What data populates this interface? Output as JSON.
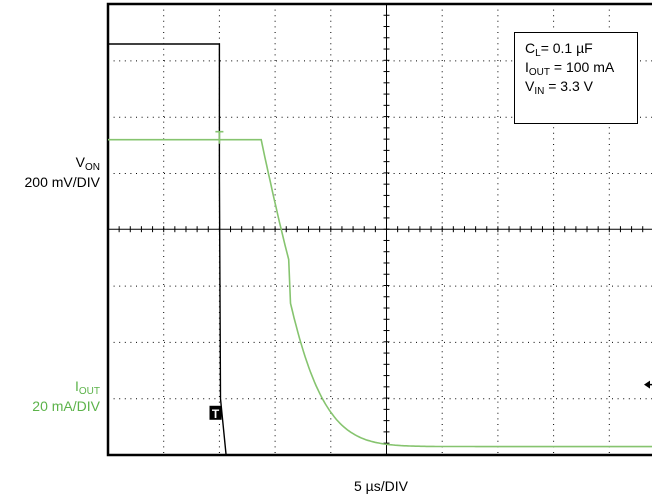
{
  "chart_data": {
    "type": "line",
    "title": "",
    "x_axis": {
      "label": "5 µs/DIV",
      "units_per_div": 5,
      "unit": "µs",
      "divisions": 10,
      "range": [
        0,
        50
      ]
    },
    "y_axis": {
      "divisions": 8,
      "grid": true
    },
    "annotation": {
      "lines": [
        {
          "main": "C",
          "sub": "L",
          "rest": "= 0.1 µF"
        },
        {
          "main": "I",
          "sub": "OUT",
          "rest": " = 100 mA"
        },
        {
          "main": "V",
          "sub": "IN",
          "rest": " = 3.3 V"
        }
      ],
      "position": "top-right"
    },
    "series": [
      {
        "name": "VON",
        "label_main": "V",
        "label_sub": "ON",
        "scale": "200 mV/DIV",
        "color": "#000000",
        "x_div": [
          0,
          2.0,
          2.0,
          2.02,
          2.12,
          10
        ],
        "y_div": [
          7.3,
          7.3,
          5.0,
          1.0,
          0.0,
          0.0
        ],
        "ground_marker": "T",
        "ground_div": 0.75
      },
      {
        "name": "IOUT",
        "label_main": "I",
        "label_sub": "OUT",
        "scale": "20 mA/DIV",
        "color": "#86c46f",
        "pre_level_div": 5.6,
        "drop_start_div": 2.75,
        "tau_div": 0.82,
        "final_div": 0.15,
        "trigger_marker": "T"
      }
    ],
    "trigger_arrow_div": 1.25
  }
}
